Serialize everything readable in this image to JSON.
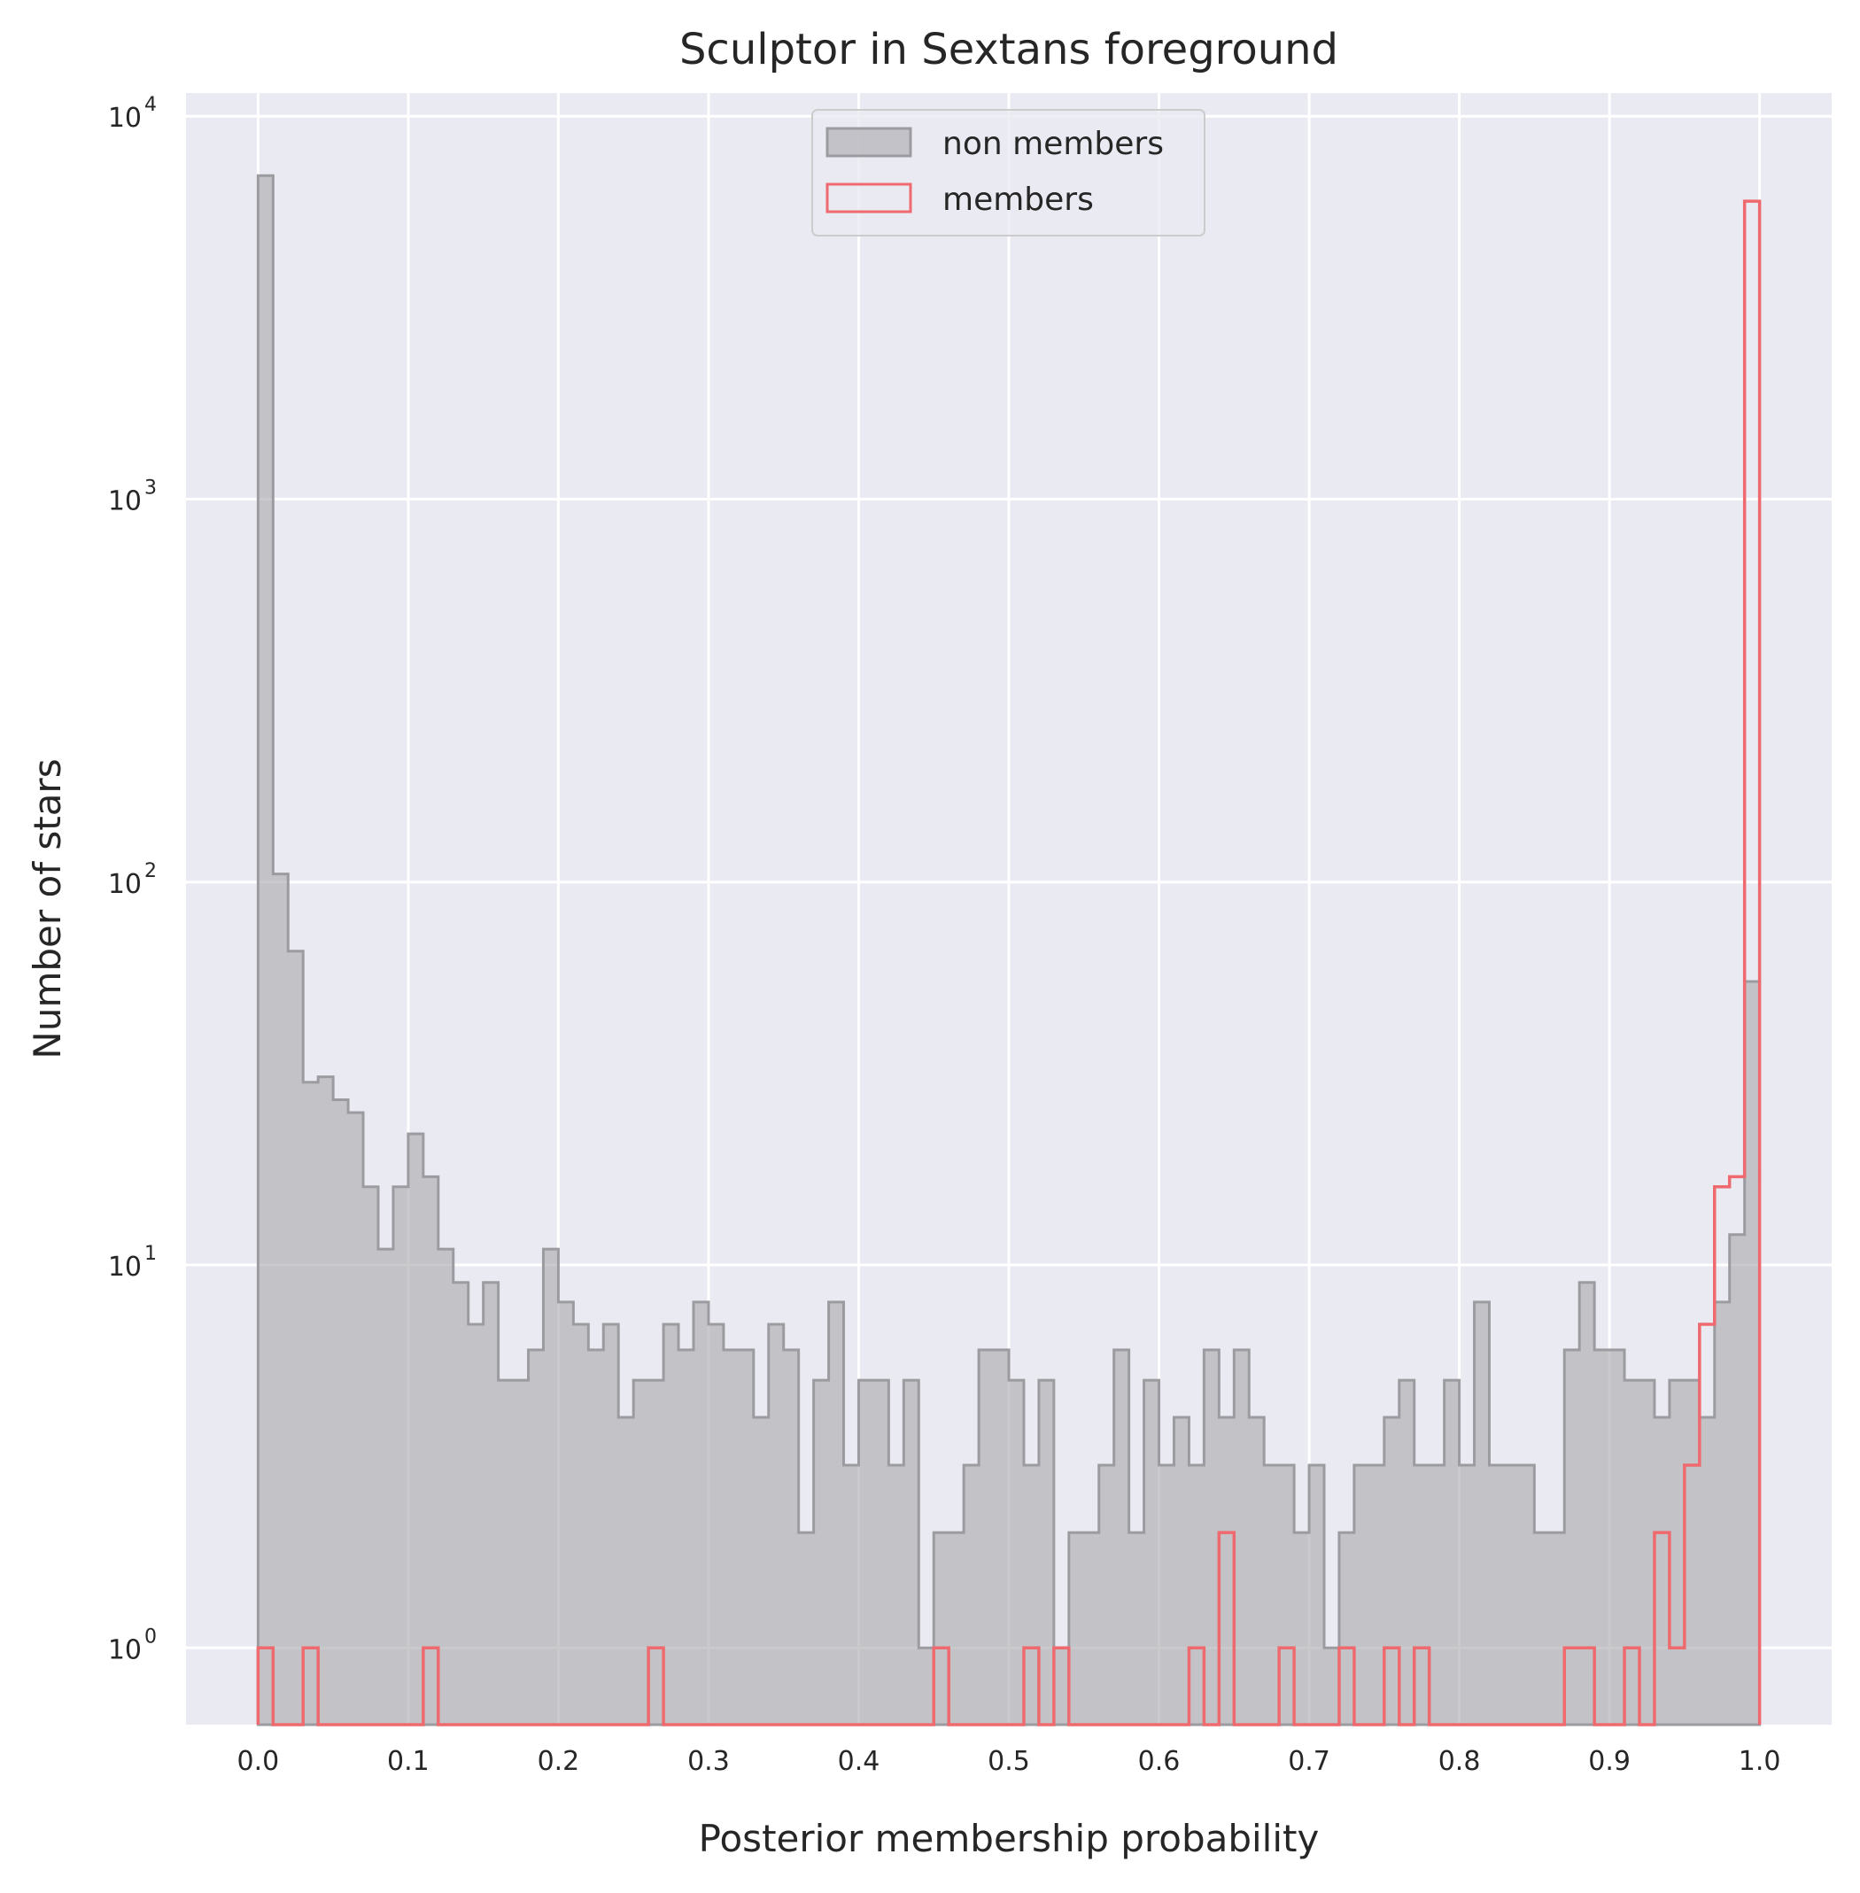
{
  "chart_data": {
    "type": "histogram",
    "title": "Sculptor in Sextans foreground",
    "xlabel": "Posterior membership probability",
    "ylabel": "Number of stars",
    "yscale": "log",
    "xlim": [
      -0.048,
      1.048
    ],
    "ylim": [
      0.63,
      11500
    ],
    "grid": true,
    "legend_position": "upper-center",
    "x_ticks": [
      "0.0",
      "0.1",
      "0.2",
      "0.3",
      "0.4",
      "0.5",
      "0.6",
      "0.7",
      "0.8",
      "0.9",
      "1.0"
    ],
    "y_ticks": [
      {
        "base": "10",
        "exp": "0"
      },
      {
        "base": "10",
        "exp": "1"
      },
      {
        "base": "10",
        "exp": "2"
      },
      {
        "base": "10",
        "exp": "3"
      },
      {
        "base": "10",
        "exp": "4"
      }
    ],
    "bin_edges_range": [
      0.0,
      1.0
    ],
    "n_bins": 100,
    "series": [
      {
        "name": "non members",
        "style": "filled",
        "color": "#a9a9ad",
        "edge_color": "#9c9ca0",
        "counts": [
          7000,
          105,
          66,
          30,
          31,
          27,
          25,
          16,
          11,
          16,
          22,
          17,
          11,
          9,
          7,
          9,
          5,
          5,
          6,
          11,
          8,
          7,
          6,
          7,
          4,
          5,
          5,
          7,
          6,
          8,
          7,
          6,
          6,
          4,
          7,
          6,
          2,
          5,
          8,
          3,
          5,
          5,
          3,
          5,
          1,
          2,
          2,
          3,
          6,
          6,
          5,
          3,
          5,
          1,
          2,
          2,
          3,
          6,
          2,
          5,
          3,
          4,
          3,
          6,
          4,
          6,
          4,
          3,
          3,
          2,
          3,
          1,
          2,
          3,
          3,
          4,
          5,
          3,
          3,
          5,
          3,
          8,
          3,
          3,
          3,
          2,
          2,
          6,
          9,
          6,
          6,
          5,
          5,
          4,
          5,
          5,
          4,
          8,
          12,
          55
        ]
      },
      {
        "name": "members",
        "style": "step",
        "color": "#ee6a6e",
        "counts": [
          1,
          0,
          0,
          1,
          0,
          0,
          0,
          0,
          0,
          0,
          0,
          1,
          0,
          0,
          0,
          0,
          0,
          0,
          0,
          0,
          0,
          0,
          0,
          0,
          0,
          0,
          1,
          0,
          0,
          0,
          0,
          0,
          0,
          0,
          0,
          0,
          0,
          0,
          0,
          0,
          0,
          0,
          0,
          0,
          0,
          1,
          0,
          0,
          0,
          0,
          0,
          1,
          0,
          1,
          0,
          0,
          0,
          0,
          0,
          0,
          0,
          0,
          1,
          0,
          2,
          0,
          0,
          0,
          1,
          0,
          0,
          0,
          1,
          0,
          0,
          1,
          0,
          1,
          0,
          0,
          0,
          0,
          0,
          0,
          0,
          0,
          0,
          1,
          1,
          0,
          0,
          1,
          0,
          2,
          1,
          3,
          7,
          16,
          17,
          6000
        ]
      }
    ]
  }
}
